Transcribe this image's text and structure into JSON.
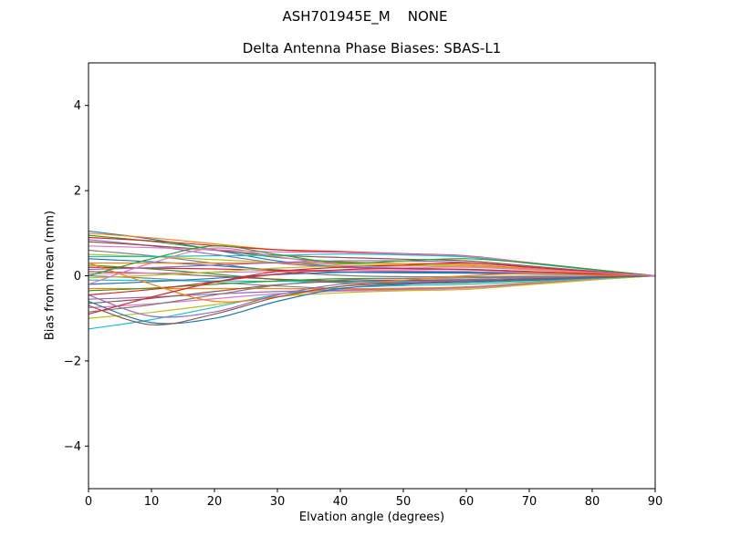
{
  "chart_data": {
    "type": "line",
    "suptitle": "ASH701945E_M    NONE",
    "title": "Delta Antenna Phase Biases: SBAS-L1",
    "xlabel": "Elvation angle (degrees)",
    "ylabel": "Bias from mean (mm)",
    "xlim": [
      0,
      90
    ],
    "ylim": [
      -5,
      5
    ],
    "xticks": [
      0,
      10,
      20,
      30,
      40,
      50,
      60,
      70,
      80,
      90
    ],
    "yticks": [
      -4,
      -2,
      0,
      2,
      4
    ],
    "grid": false,
    "legend": "none",
    "axis_color": "#000000",
    "x": [
      0,
      10,
      20,
      30,
      40,
      50,
      60,
      70,
      80,
      90
    ],
    "series": [
      {
        "color": "#1f77b4",
        "values": [
          1.05,
          0.86,
          0.61,
          0.35,
          0.22,
          0.17,
          0.15,
          0.1,
          0.04,
          0
        ]
      },
      {
        "color": "#ff7f0e",
        "values": [
          1.0,
          0.89,
          0.75,
          0.61,
          0.55,
          0.5,
          0.45,
          0.3,
          0.14,
          0
        ]
      },
      {
        "color": "#2ca02c",
        "values": [
          0.95,
          0.81,
          0.62,
          0.43,
          0.33,
          0.29,
          0.26,
          0.17,
          0.08,
          0
        ]
      },
      {
        "color": "#d62728",
        "values": [
          0.9,
          0.82,
          0.71,
          0.61,
          0.57,
          0.52,
          0.47,
          0.31,
          0.15,
          0
        ]
      },
      {
        "color": "#9467bd",
        "values": [
          0.85,
          0.7,
          0.5,
          0.3,
          0.2,
          0.16,
          0.14,
          0.09,
          0.04,
          0
        ]
      },
      {
        "color": "#8c564b",
        "values": [
          0.8,
          0.71,
          0.6,
          0.48,
          0.43,
          0.39,
          0.35,
          0.23,
          0.11,
          0
        ]
      },
      {
        "color": "#e377c2",
        "values": [
          0.7,
          0.66,
          0.61,
          0.56,
          0.55,
          0.51,
          0.46,
          0.31,
          0.15,
          0
        ]
      },
      {
        "color": "#7f7f7f",
        "values": [
          0.6,
          0.47,
          0.29,
          0.11,
          0.01,
          -0.02,
          -0.02,
          -0.01,
          -0.01,
          0
        ]
      },
      {
        "color": "#bcbd22",
        "values": [
          0.5,
          0.45,
          0.38,
          0.31,
          0.28,
          0.25,
          0.23,
          0.15,
          0.07,
          0
        ]
      },
      {
        "color": "#17becf",
        "values": [
          0.45,
          0.45,
          0.47,
          0.48,
          0.51,
          0.49,
          0.44,
          0.29,
          0.14,
          0
        ]
      },
      {
        "color": "#1f77b4",
        "values": [
          0.4,
          0.33,
          0.24,
          0.14,
          0.09,
          0.07,
          0.06,
          0.04,
          0.02,
          0
        ]
      },
      {
        "color": "#ff7f0e",
        "values": [
          0.3,
          0.3,
          0.3,
          0.3,
          0.31,
          0.29,
          0.26,
          0.17,
          0.08,
          0
        ]
      },
      {
        "color": "#2ca02c",
        "values": [
          0.25,
          0.16,
          0.04,
          -0.09,
          -0.16,
          -0.18,
          -0.16,
          -0.11,
          -0.06,
          0
        ]
      },
      {
        "color": "#d62728",
        "values": [
          0.2,
          0.18,
          0.16,
          0.13,
          0.12,
          0.11,
          0.1,
          0.07,
          0.03,
          0
        ]
      },
      {
        "color": "#9467bd",
        "values": [
          0.15,
          0.19,
          0.25,
          0.31,
          0.35,
          0.35,
          0.31,
          0.21,
          0.1,
          0
        ]
      },
      {
        "color": "#8c564b",
        "values": [
          0.1,
          0.06,
          -0.01,
          -0.08,
          -0.12,
          -0.12,
          -0.11,
          -0.07,
          -0.04,
          0
        ]
      },
      {
        "color": "#e377c2",
        "values": [
          0.05,
          0.06,
          0.08,
          0.1,
          0.12,
          0.12,
          0.1,
          0.07,
          0.03,
          0
        ]
      },
      {
        "color": "#7f7f7f",
        "values": [
          0,
          -0.06,
          -0.15,
          -0.24,
          -0.3,
          -0.3,
          -0.27,
          -0.18,
          -0.09,
          0
        ]
      },
      {
        "color": "#bcbd22",
        "values": [
          -0.05,
          0.01,
          0.09,
          0.18,
          0.23,
          0.24,
          0.21,
          0.14,
          0.07,
          0
        ]
      },
      {
        "color": "#17becf",
        "values": [
          -0.1,
          -0.11,
          -0.12,
          -0.13,
          -0.14,
          -0.13,
          -0.12,
          -0.08,
          -0.04,
          0
        ]
      },
      {
        "color": "#1f77b4",
        "values": [
          -0.2,
          -0.14,
          -0.06,
          0.03,
          0.08,
          0.09,
          0.08,
          0.05,
          0.03,
          0
        ]
      },
      {
        "color": "#ff7f0e",
        "values": [
          -0.3,
          -0.3,
          -0.3,
          -0.3,
          -0.31,
          -0.29,
          -0.26,
          -0.17,
          -0.08,
          0
        ]
      },
      {
        "color": "#2ca02c",
        "values": [
          -0.35,
          -0.29,
          -0.2,
          -0.12,
          -0.07,
          -0.06,
          -0.05,
          -0.03,
          -0.01,
          0
        ]
      },
      {
        "color": "#d62728",
        "values": [
          -0.45,
          -0.32,
          -0.14,
          0.04,
          0.14,
          0.17,
          0.15,
          0.1,
          0.05,
          0
        ]
      },
      {
        "color": "#9467bd",
        "values": [
          -0.55,
          -0.5,
          -0.43,
          -0.37,
          -0.34,
          -0.32,
          -0.28,
          -0.19,
          -0.09,
          0
        ]
      },
      {
        "color": "#8c564b",
        "values": [
          -0.65,
          -0.53,
          -0.37,
          -0.21,
          -0.13,
          -0.1,
          -0.09,
          -0.06,
          -0.02,
          0
        ]
      },
      {
        "color": "#e377c2",
        "values": [
          -0.75,
          -0.66,
          -0.54,
          -0.42,
          -0.36,
          -0.33,
          -0.29,
          -0.2,
          -0.09,
          0
        ]
      },
      {
        "color": "#7f7f7f",
        "values": [
          -0.85,
          -0.68,
          -0.45,
          -0.22,
          -0.1,
          -0.06,
          -0.05,
          -0.03,
          -0.01,
          0
        ]
      },
      {
        "color": "#bcbd22",
        "values": [
          -1.0,
          -0.86,
          -0.68,
          -0.49,
          -0.4,
          -0.35,
          -0.32,
          -0.21,
          -0.1,
          0
        ]
      },
      {
        "color": "#17becf",
        "values": [
          -1.25,
          -1.03,
          -0.74,
          -0.44,
          -0.29,
          -0.23,
          -0.2,
          -0.14,
          -0.06,
          0
        ]
      },
      {
        "color": "#1f77b4",
        "values": [
          -0.6,
          -1.1,
          -1.0,
          -0.6,
          -0.3,
          -0.2,
          -0.15,
          -0.1,
          -0.05,
          0
        ]
      },
      {
        "color": "#ff7f0e",
        "values": [
          0.3,
          -0.2,
          -0.6,
          -0.5,
          -0.25,
          -0.1,
          0,
          0.05,
          0.02,
          0
        ]
      },
      {
        "color": "#2ca02c",
        "values": [
          0,
          0.4,
          0.7,
          0.5,
          0.3,
          0.35,
          0.4,
          0.3,
          0.15,
          0
        ]
      },
      {
        "color": "#d62728",
        "values": [
          -0.9,
          -0.5,
          -0.15,
          0.1,
          0.2,
          0.25,
          0.3,
          0.2,
          0.1,
          0
        ]
      },
      {
        "color": "#9467bd",
        "values": [
          -0.45,
          -0.95,
          -0.85,
          -0.45,
          -0.2,
          -0.15,
          -0.1,
          -0.05,
          -0.02,
          0
        ]
      },
      {
        "color": "#8c564b",
        "values": [
          -0.7,
          -1.15,
          -0.9,
          -0.5,
          -0.25,
          -0.18,
          -0.12,
          -0.08,
          -0.03,
          0
        ]
      },
      {
        "color": "#e377c2",
        "values": [
          -0.2,
          0.3,
          0.65,
          0.45,
          0.25,
          0.2,
          0.2,
          0.15,
          0.08,
          0
        ]
      }
    ]
  }
}
